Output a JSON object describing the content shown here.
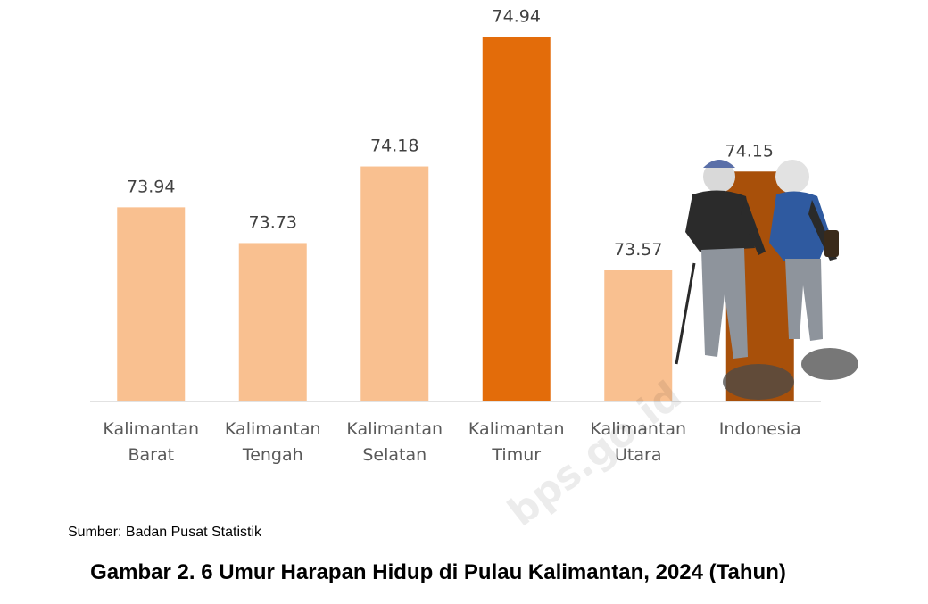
{
  "chart_data": {
    "type": "bar",
    "categories": [
      [
        "Kalimantan",
        "Barat"
      ],
      [
        "Kalimantan",
        "Tengah"
      ],
      [
        "Kalimantan",
        "Selatan"
      ],
      [
        "Kalimantan",
        "Timur"
      ],
      [
        "Kalimantan",
        "Utara"
      ],
      [
        "Indonesia"
      ]
    ],
    "values": [
      73.94,
      73.73,
      74.18,
      74.94,
      73.57,
      74.15
    ],
    "value_labels": [
      "73.94",
      "73.73",
      "74.18",
      "74.94",
      "73.57",
      "74.15"
    ],
    "highlight": [
      false,
      false,
      false,
      true,
      false,
      true
    ],
    "colors": {
      "default": "#F9C090",
      "highlight": "#E36C0A",
      "highlight_dark": "#A8500A",
      "axis": "#D9D9D9"
    },
    "ylim": [
      72.8,
      75.0
    ],
    "grid": false,
    "legend": "none",
    "xlabel": "",
    "ylabel": ""
  },
  "source": "Sumber: Badan Pusat Statistik",
  "caption": "Gambar 2. 6 Umur Harapan Hidup di Pulau Kalimantan, 2024 (Tahun)",
  "watermark": "bps.go.id"
}
